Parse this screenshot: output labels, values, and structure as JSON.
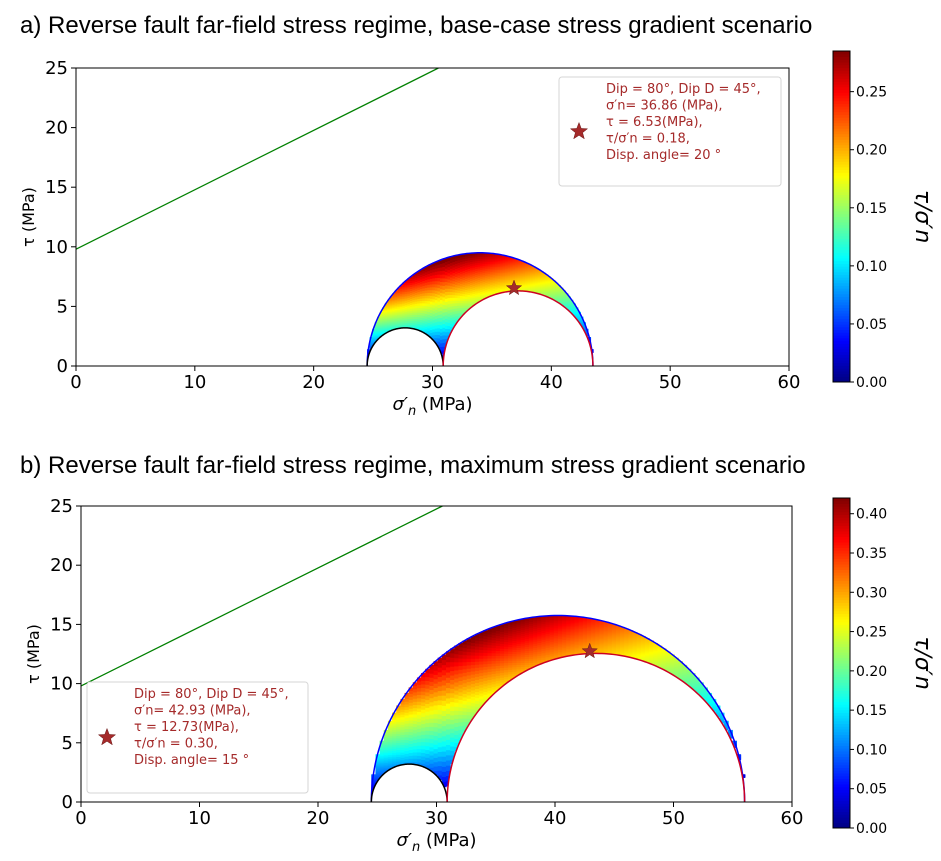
{
  "chart_data": [
    {
      "type": "scatter",
      "panel_title": "a) Reverse fault far-field stress regime, base-case stress gradient scenario",
      "xlabel_main": "σ′",
      "xlabel_sub": "n",
      "xlabel_units": " (MPa)",
      "ylabel": "τ (MPa)",
      "xlim": [
        0,
        60
      ],
      "ylim": [
        0,
        25
      ],
      "x_ticks": [
        0,
        10,
        20,
        30,
        40,
        50,
        60
      ],
      "y_ticks": [
        0,
        5,
        10,
        15,
        20,
        25
      ],
      "grid": false,
      "colormap": "jet",
      "colorbar": {
        "label": "τ/σ′n",
        "min": 0.0,
        "max": 0.285,
        "ticks": [
          "0.00",
          "0.05",
          "0.10",
          "0.15",
          "0.20",
          "0.25"
        ]
      },
      "mohr_circles": {
        "sigma3": 24.5,
        "sigma2": 30.9,
        "sigma1": 43.5
      },
      "failure_line": {
        "x": [
          0,
          30.5
        ],
        "y": [
          9.8,
          25
        ],
        "color": "#008000"
      },
      "marked_point": {
        "x": 36.86,
        "y": 6.53,
        "color": "#a52a2a",
        "legend_lines": [
          "Dip = 80°, Dip D = 45°,",
          "σ′n= 36.86 (MPa),",
          "τ = 6.53(MPa),",
          "τ/σ′n  = 0.18,",
          "Disp. angle=   20 °"
        ],
        "legend_position": "upper right"
      }
    },
    {
      "type": "scatter",
      "panel_title": "b) Reverse fault far-field stress regime, maximum stress gradient scenario",
      "xlabel_main": "σ′",
      "xlabel_sub": "n",
      "xlabel_units": " (MPa)",
      "ylabel": "τ (MPa)",
      "xlim": [
        0,
        60
      ],
      "ylim": [
        0,
        25
      ],
      "x_ticks": [
        0,
        10,
        20,
        30,
        40,
        50,
        60
      ],
      "y_ticks": [
        0,
        5,
        10,
        15,
        20,
        25
      ],
      "grid": false,
      "colormap": "jet",
      "colorbar": {
        "label": "τ/σ′n",
        "min": 0.0,
        "max": 0.42,
        "ticks": [
          "0.00",
          "0.05",
          "0.10",
          "0.15",
          "0.20",
          "0.25",
          "0.30",
          "0.35",
          "0.40"
        ]
      },
      "mohr_circles": {
        "sigma3": 24.5,
        "sigma2": 30.9,
        "sigma1": 56.0
      },
      "failure_line": {
        "x": [
          0,
          30.5
        ],
        "y": [
          9.8,
          25
        ],
        "color": "#008000"
      },
      "marked_point": {
        "x": 42.93,
        "y": 12.73,
        "color": "#a52a2a",
        "legend_lines": [
          "Dip = 80°, Dip D = 45°,",
          "σ′n= 42.93 (MPa),",
          "τ = 12.73(MPa),",
          "τ/σ′n  = 0.30,",
          "Disp. angle=   15 °"
        ],
        "legend_position": "lower left"
      }
    }
  ]
}
